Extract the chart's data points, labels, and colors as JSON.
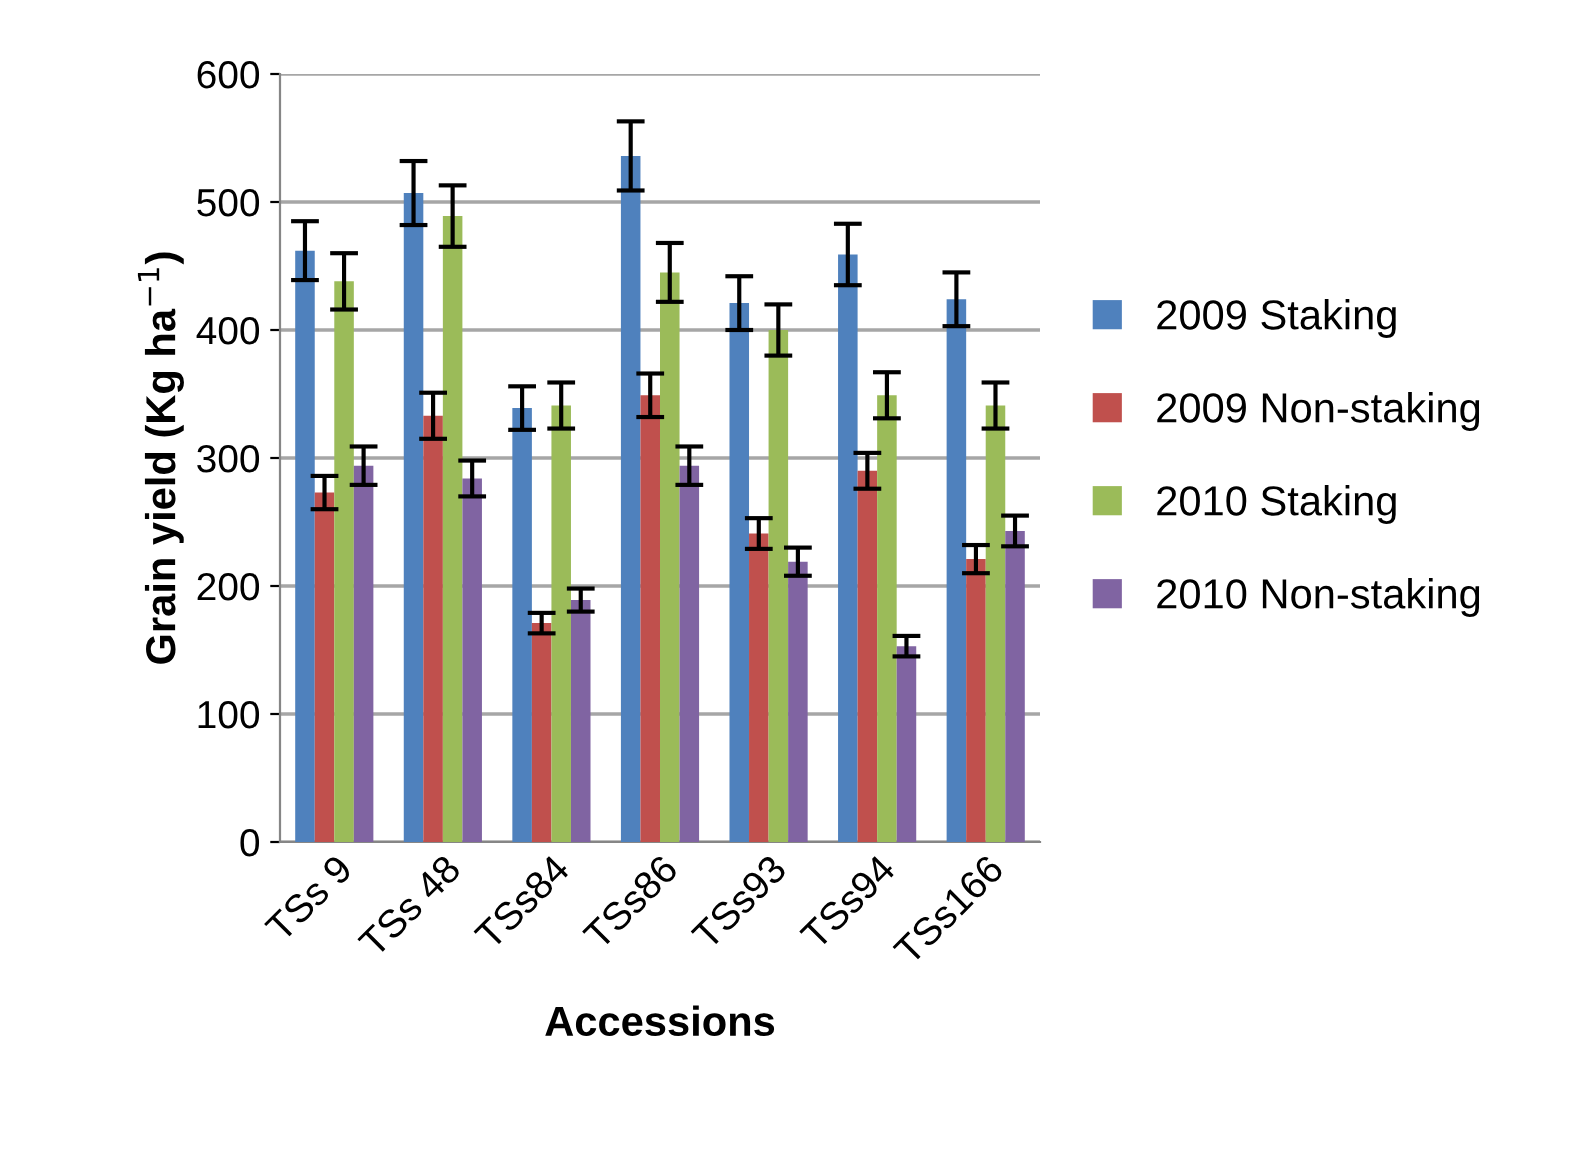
{
  "chart_data": {
    "type": "bar",
    "xlabel": "Accessions",
    "ylabel": "Grain yield (Kg ha$^{−1}$)",
    "categories": [
      "TSs 9",
      "TSs 48",
      "TSs84",
      "TSs86",
      "TSs93",
      "TSs94",
      "TSs166"
    ],
    "series": [
      {
        "name": "2009 Staking",
        "color": "#4f81bd",
        "values": [
          462,
          507,
          339,
          536,
          421,
          459,
          424
        ],
        "errors": [
          23,
          25,
          17,
          27,
          21,
          24,
          21
        ]
      },
      {
        "name": "2009 Non-staking",
        "color": "#c0504d",
        "values": [
          273,
          333,
          171,
          349,
          241,
          290,
          221
        ],
        "errors": [
          13,
          18,
          8,
          17,
          12,
          14,
          11
        ]
      },
      {
        "name": "2010 Staking",
        "color": "#9bbb59",
        "values": [
          438,
          489,
          341,
          445,
          400,
          349,
          341
        ],
        "errors": [
          22,
          24,
          18,
          23,
          20,
          18,
          18
        ]
      },
      {
        "name": "2010 Non-staking",
        "color": "#8064a2",
        "values": [
          294,
          284,
          189,
          294,
          219,
          153,
          243
        ],
        "errors": [
          15,
          14,
          9,
          15,
          11,
          8,
          12
        ]
      }
    ],
    "ylim": [
      0,
      600
    ],
    "yticks": [
      0,
      100,
      200,
      300,
      400,
      500,
      600
    ],
    "grid": "y",
    "legend": "right"
  }
}
